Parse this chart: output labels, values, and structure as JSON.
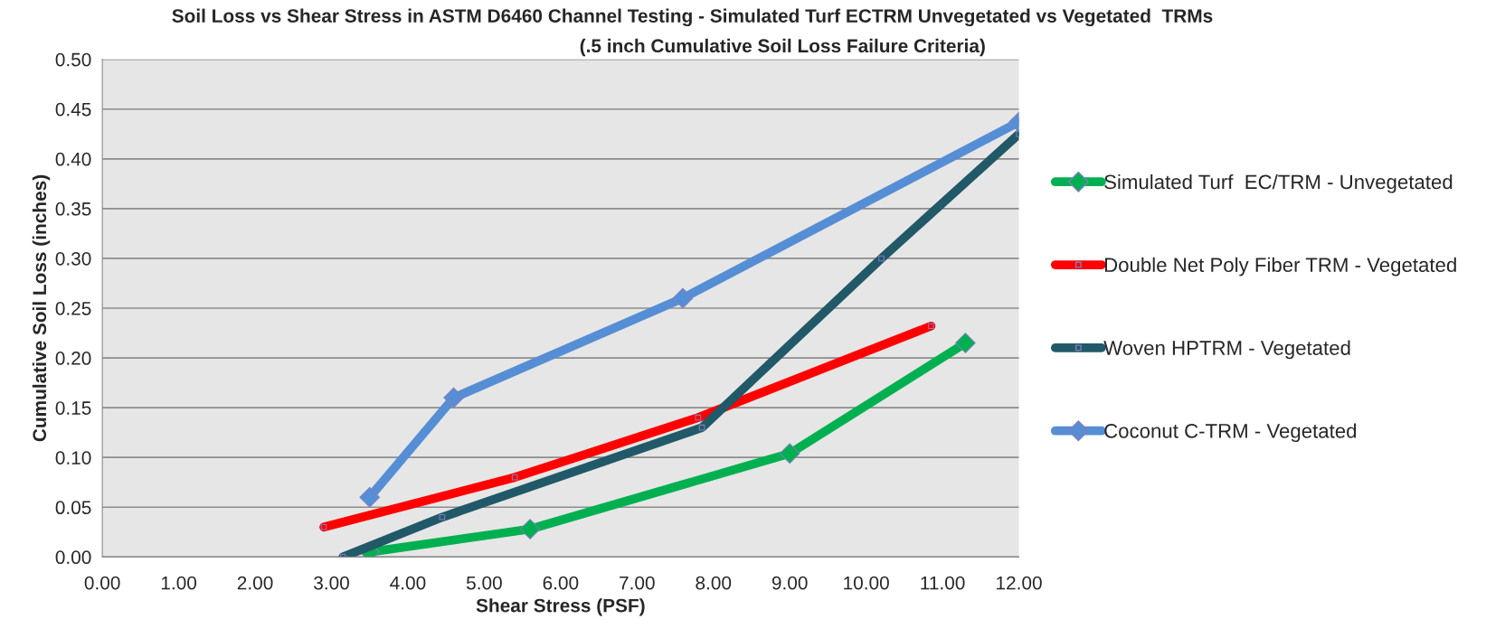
{
  "chart_data": {
    "type": "line",
    "title": "Soil Loss vs Shear Stress in ASTM D6460 Channel Testing - Simulated Turf ECTRM Unvegetated vs Vegetated  TRMs",
    "subtitle": "(.5 inch Cumulative Soil Loss Failure Criteria)",
    "xlabel": "Shear Stress (PSF)",
    "ylabel": "Cumulative Soil Loss (inches)",
    "series": [
      {
        "name": "Simulated Turf  EC/TRM - Unvegetated",
        "color": "#00b050",
        "marker": "diamond",
        "x": [
          3.5,
          5.6,
          9.0,
          11.3
        ],
        "values": [
          0.005,
          0.028,
          0.104,
          0.215
        ]
      },
      {
        "name": "Double Net Poly Fiber TRM - Vegetated",
        "color": "#ff0000",
        "marker": "square",
        "x": [
          2.9,
          5.4,
          7.8,
          10.85
        ],
        "values": [
          0.03,
          0.08,
          0.14,
          0.232
        ]
      },
      {
        "name": "Woven HPTRM - Vegetated",
        "color": "#215968",
        "marker": "square",
        "x": [
          3.15,
          4.45,
          7.85,
          10.2,
          12.0
        ],
        "values": [
          0.0,
          0.04,
          0.13,
          0.3,
          0.425
        ]
      },
      {
        "name": "Coconut C-TRM - Vegetated",
        "color": "#558ed5",
        "marker": "diamond",
        "x": [
          3.5,
          4.6,
          7.6,
          12.0
        ],
        "values": [
          0.06,
          0.16,
          0.26,
          0.437
        ]
      }
    ],
    "xlim": [
      0,
      12
    ],
    "xticks": [
      {
        "value": 0,
        "label": "0.00"
      },
      {
        "value": 1,
        "label": "1.00"
      },
      {
        "value": 2,
        "label": "2.00"
      },
      {
        "value": 3,
        "label": "3.00"
      },
      {
        "value": 4,
        "label": "4.00"
      },
      {
        "value": 5,
        "label": "5.00"
      },
      {
        "value": 6,
        "label": "6.00"
      },
      {
        "value": 7,
        "label": "7.00"
      },
      {
        "value": 8,
        "label": "8.00"
      },
      {
        "value": 9,
        "label": "9.00"
      },
      {
        "value": 10,
        "label": "10.00"
      },
      {
        "value": 11,
        "label": "11.00"
      },
      {
        "value": 12,
        "label": "12.00"
      }
    ],
    "ylim": [
      0,
      0.5
    ],
    "yticks": [
      {
        "value": 0,
        "label": "0.00"
      },
      {
        "value": 0.05,
        "label": "0.05"
      },
      {
        "value": 0.1,
        "label": "0.10"
      },
      {
        "value": 0.15,
        "label": "0.15"
      },
      {
        "value": 0.2,
        "label": "0.20"
      },
      {
        "value": 0.25,
        "label": "0.25"
      },
      {
        "value": 0.3,
        "label": "0.30"
      },
      {
        "value": 0.35,
        "label": "0.35"
      },
      {
        "value": 0.4,
        "label": "0.40"
      },
      {
        "value": 0.45,
        "label": "0.45"
      },
      {
        "value": 0.5,
        "label": "0.50"
      }
    ],
    "grid": "y",
    "legend": "right",
    "line_style": "solid"
  }
}
